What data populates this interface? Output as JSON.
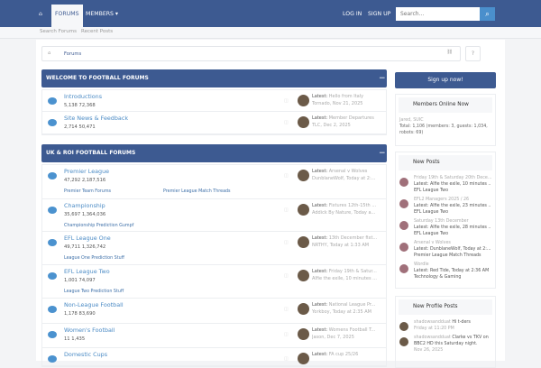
{
  "nav": {
    "home": "⌂",
    "forums": "FORUMS",
    "members": "MEMBERS ▾",
    "login": "LOG IN",
    "signup": "SIGN UP",
    "search_placeholder": "Search...",
    "search_icon": "⌕"
  },
  "subnav": {
    "search_forums": "Search Forums",
    "recent_posts": "Recent Posts"
  },
  "breadcrumb": {
    "home": "⌂",
    "forums": "Forums",
    "tree": "⛓",
    "help": "?"
  },
  "categories": [
    {
      "title": "WELCOME TO FOOTBALL FORUMS",
      "toggle": "−",
      "forums": [
        {
          "title": "Introductions",
          "threads": "5,138",
          "messages": "72,368",
          "latest": "Hello from Italy",
          "by": "Tornado, Nov 21, 2025"
        },
        {
          "title": "Site News & Feedback",
          "threads": "2,714",
          "messages": "50,471",
          "latest": "Member Departures",
          "by": "TLC, Dec 2, 2025"
        }
      ]
    },
    {
      "title": "UK & ROI FOOTBALL FORUMS",
      "toggle": "−",
      "forums": [
        {
          "title": "Premier League",
          "threads": "47,292",
          "messages": "2,187,516",
          "latest": "Arsenal v Wolves",
          "by": "DunblaneWolf, Today at 2:...",
          "subs": [
            "Premier Team Forums",
            "Premier League Match Threads"
          ]
        },
        {
          "title": "Championship",
          "threads": "35,697",
          "messages": "1,364,036",
          "latest": "Fixtures 12th-15th ...",
          "by": "Addick By Nature, Today a...",
          "subs": [
            "Championship Prediction Gumpf"
          ]
        },
        {
          "title": "EFL League One",
          "threads": "49,711",
          "messages": "1,326,742",
          "latest": "13th December fixt...",
          "by": "NRTHY, Today at 1:33 AM",
          "subs": [
            "League One Prediction Stuff"
          ]
        },
        {
          "title": "EFL League Two",
          "threads": "1,001",
          "messages": "74,097",
          "latest": "Friday 19th & Satur...",
          "by": "Alfie the exile, 10 minutes ...",
          "subs": [
            "League Two Prediction Stuff"
          ]
        },
        {
          "title": "Non-League Football",
          "threads": "1,178",
          "messages": "83,690",
          "latest": "National League Pr...",
          "by": "Yorkboy, Today at 2:35 AM"
        },
        {
          "title": "Women's Football",
          "threads": "11",
          "messages": "1,435",
          "latest": "Womens Football T...",
          "by": "Jason, Dec 7, 2025"
        },
        {
          "title": "Domestic Cups",
          "threads": "",
          "messages": "",
          "latest": "FA cup 25/26",
          "by": ""
        }
      ]
    }
  ],
  "latest_label": "Latest:",
  "sidebar": {
    "signup": "Sign up now!",
    "online": {
      "title": "Members Online Now",
      "members": "Jared, SUIC",
      "totals": "Total: 1,106 (members: 3, guests: 1,034, robots: 69)"
    },
    "new_posts": {
      "title": "New Posts",
      "items": [
        {
          "t": "Friday 19th & Saturday 20th Dece...",
          "l": "Latest: Alfie the exile, 10 minutes ...",
          "f": "EFL League Two"
        },
        {
          "t": "EFL2 Managers 2025 / 26",
          "l": "Latest: Alfie the exile, 23 minutes ...",
          "f": "EFL League Two"
        },
        {
          "t": "Saturday 13th December",
          "l": "Latest: Alfie the exile, 28 minutes ...",
          "f": "EFL League Two"
        },
        {
          "t": "Arsenal v Wolves",
          "l": "Latest: DunblaneWolf, Today at 2:...",
          "f": "Premier League Match Threads"
        },
        {
          "t": "Wordle",
          "l": "Latest: Red Tide, Today at 2:36 AM",
          "f": "Technology & Gaming"
        }
      ]
    },
    "profile_posts": {
      "title": "New Profile Posts",
      "items": [
        {
          "u": "shadowsandduat",
          "m": "Hi t-ders",
          "d": "Friday at 11:20 PM"
        },
        {
          "u": "shadowsandduat",
          "m": "Clarke vs TKV on BBC2 HD this Saturday night.",
          "d": "Nov 26, 2025"
        }
      ]
    }
  },
  "colors": {
    "brand": "#3d5a91",
    "link": "#4b8bc5",
    "search_button": "#4a8fcc"
  }
}
